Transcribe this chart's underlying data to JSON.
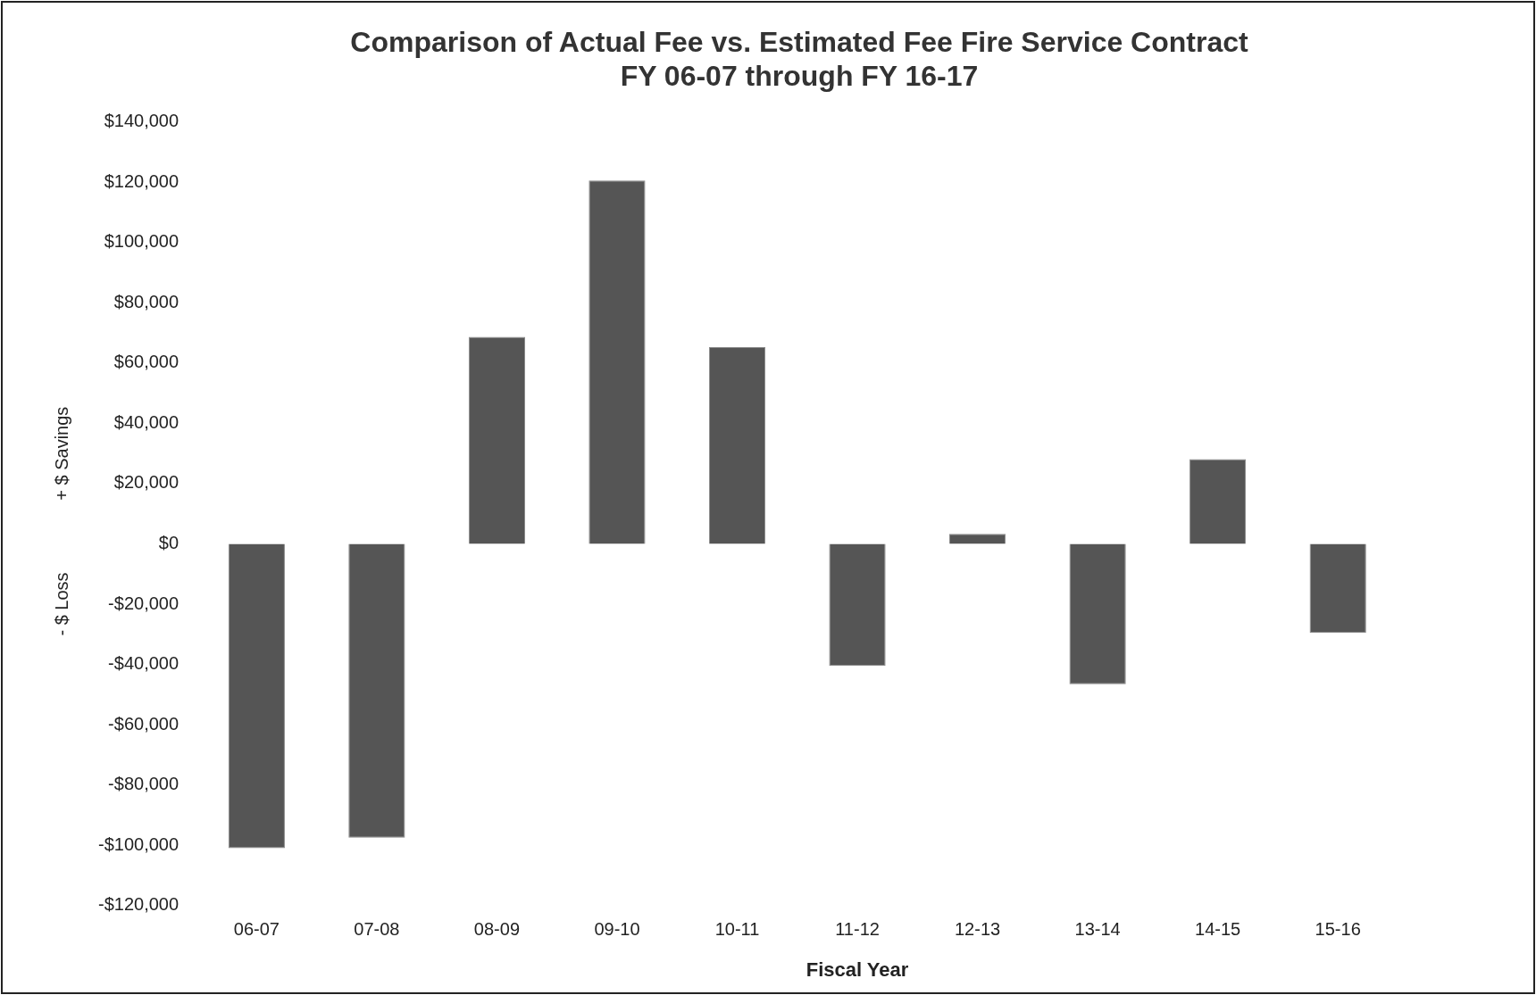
{
  "chart_data": {
    "type": "bar",
    "title": "Comparison of Actual Fee vs. Estimated Fee Fire Service Contract",
    "subtitle": "FY 06-07 through FY 16-17",
    "xlabel": "Fiscal Year",
    "ylabel": "+ $ Savings",
    "annotations": [
      "- $ Loss"
    ],
    "categories": [
      "06-07",
      "07-08",
      "08-09",
      "09-10",
      "10-11",
      "11-12",
      "12-13",
      "13-14",
      "14-15",
      "15-16",
      null
    ],
    "values": [
      -101000,
      -97500,
      68700,
      120600,
      65300,
      -40500,
      3300,
      -46600,
      28100,
      -29500,
      null
    ],
    "color": "#555555",
    "ylim": [
      -120000,
      140000
    ],
    "yticks": [
      {
        "value": -120000,
        "label": "-$120,000"
      },
      {
        "value": -100000,
        "label": "-$100,000"
      },
      {
        "value": -80000,
        "label": "-$80,000"
      },
      {
        "value": -60000,
        "label": "-$60,000"
      },
      {
        "value": -40000,
        "label": "-$40,000"
      },
      {
        "value": -20000,
        "label": "-$20,000"
      },
      {
        "value": 0,
        "label": "$0"
      },
      {
        "value": 20000,
        "label": "$20,000"
      },
      {
        "value": 40000,
        "label": "$40,000"
      },
      {
        "value": 60000,
        "label": "$60,000"
      },
      {
        "value": 80000,
        "label": "$80,000"
      },
      {
        "value": 100000,
        "label": "$100,000"
      },
      {
        "value": 120000,
        "label": "$120,000"
      },
      {
        "value": 140000,
        "label": "$140,000"
      }
    ],
    "grid": false,
    "legend": false
  }
}
